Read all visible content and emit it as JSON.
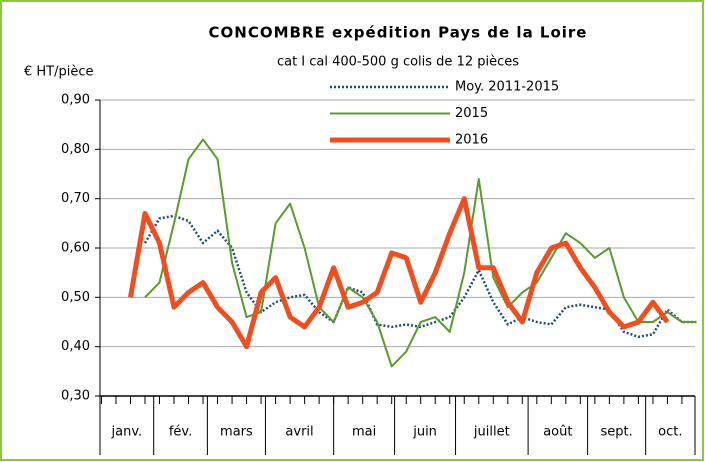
{
  "chart_data": {
    "type": "line",
    "title": "CONCOMBRE  expédition Pays de la Loire",
    "subtitle": "cat I  cal 400-500 g  colis  de 12 pièces",
    "y_label": "€ HT/pièce",
    "x": [
      2,
      3,
      4,
      5,
      6,
      7,
      8,
      9,
      10,
      11,
      12,
      13,
      14,
      15,
      16,
      17,
      18,
      19,
      20,
      21,
      22,
      23,
      24,
      25,
      26,
      27,
      28,
      29,
      30,
      31,
      32,
      33,
      34,
      35,
      36,
      37,
      38,
      39,
      40,
      41
    ],
    "xlim": [
      -0.1,
      40.9
    ],
    "xticks": [
      0,
      1,
      2,
      3,
      4,
      5,
      6,
      7,
      8,
      9,
      10,
      11,
      12,
      13,
      14,
      15,
      16,
      17,
      18,
      19,
      20,
      21,
      22,
      23,
      24,
      25,
      26,
      27,
      28,
      29,
      30,
      31,
      32,
      33,
      34,
      35,
      36,
      37,
      38,
      39,
      40
    ],
    "months": [
      "janv.",
      "fév.",
      "mars",
      "avril",
      "mai",
      "juin",
      "juillet",
      "août",
      "sept.",
      "oct."
    ],
    "month_edges": [
      -0.1,
      3.6,
      7.3,
      11.3,
      16,
      20.2,
      24.4,
      29.4,
      33.5,
      37.5,
      40.9
    ],
    "ylim": [
      0.3,
      0.9
    ],
    "yticks": [
      {
        "value": 0.3,
        "label": "0,30"
      },
      {
        "value": 0.4,
        "label": "0,40"
      },
      {
        "value": 0.5,
        "label": "0,50"
      },
      {
        "value": 0.6,
        "label": "0,60"
      },
      {
        "value": 0.7,
        "label": "0,70"
      },
      {
        "value": 0.8,
        "label": "0,80"
      },
      {
        "value": 0.9,
        "label": "0,90"
      }
    ],
    "grid": true,
    "series": [
      {
        "name": "Moy. 2011-2015",
        "color": "#1f4e79",
        "dash": true,
        "values": [
          null,
          0.61,
          0.66,
          0.665,
          0.655,
          0.61,
          0.635,
          0.6,
          0.51,
          0.47,
          0.49,
          0.5,
          0.505,
          0.47,
          0.45,
          0.52,
          0.51,
          0.445,
          0.44,
          0.445,
          0.44,
          0.45,
          0.46,
          0.5,
          0.555,
          0.49,
          0.445,
          0.46,
          0.45,
          0.445,
          0.48,
          0.485,
          0.48,
          0.475,
          0.43,
          0.42,
          0.425,
          0.475,
          0.45,
          0.45
        ]
      },
      {
        "name": "2015",
        "color": "#5b9a2e",
        "width": 2,
        "values": [
          null,
          0.5,
          0.53,
          0.65,
          0.78,
          0.82,
          0.78,
          0.57,
          0.46,
          0.47,
          0.65,
          0.69,
          0.6,
          0.48,
          0.45,
          0.52,
          0.5,
          0.45,
          0.36,
          0.39,
          0.45,
          0.46,
          0.43,
          0.55,
          0.74,
          0.54,
          0.48,
          0.51,
          0.53,
          0.58,
          0.63,
          0.61,
          0.58,
          0.6,
          0.5,
          0.45,
          0.45,
          0.47,
          0.45,
          0.45
        ]
      },
      {
        "name": "2016",
        "color": "#f04e1e",
        "width": 5,
        "values": [
          0.5,
          0.67,
          0.61,
          0.48,
          0.51,
          0.53,
          0.48,
          0.45,
          0.4,
          0.51,
          0.54,
          0.46,
          0.44,
          0.48,
          0.56,
          0.48,
          0.49,
          0.51,
          0.59,
          0.58,
          0.49,
          0.55,
          0.63,
          0.7,
          0.56,
          0.56,
          0.49,
          0.45,
          0.55,
          0.6,
          0.61,
          0.56,
          0.52,
          0.47,
          0.44,
          0.45,
          0.49,
          0.45,
          null,
          null
        ]
      }
    ]
  }
}
